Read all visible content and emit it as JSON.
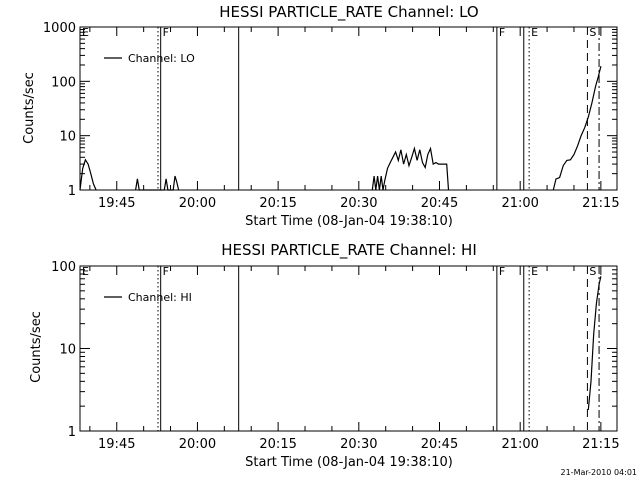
{
  "footer_timestamp": "21-Mar-2010 04:01",
  "chart_data": [
    {
      "type": "line",
      "title": "HESSI PARTICLE_RATE Channel: LO",
      "xlabel": "Start Time (08-Jan-04 19:38:10)",
      "ylabel": "Counts/sec",
      "yscale": "log",
      "ylim": [
        1,
        1000
      ],
      "xlim": [
        "19:38:10",
        "21:18:00"
      ],
      "xticks": [
        "19:45",
        "20:00",
        "20:15",
        "20:30",
        "20:45",
        "21:00",
        "21:15"
      ],
      "yticks": [
        "1",
        "10",
        "100",
        "1000"
      ],
      "legend": "Channel: LO",
      "legend_position": "top-left",
      "series": [
        {
          "name": "Channel: LO",
          "points": [
            [
              "19:38:10",
              1.0
            ],
            [
              "19:38:40",
              2.5
            ],
            [
              "19:39:10",
              3.6
            ],
            [
              "19:39:40",
              3.0
            ],
            [
              "19:40:10",
              2.0
            ],
            [
              "19:40:40",
              1.3
            ],
            [
              "19:41:10",
              1.0
            ],
            [
              "19:48:30",
              1.0
            ],
            [
              "19:48:50",
              1.6
            ],
            [
              "19:49:10",
              1.0
            ],
            [
              "19:53:50",
              1.0
            ],
            [
              "19:54:10",
              1.6
            ],
            [
              "19:54:30",
              1.0
            ],
            [
              "19:55:30",
              1.0
            ],
            [
              "19:55:50",
              1.8
            ],
            [
              "19:56:10",
              1.4
            ],
            [
              "19:56:30",
              1.0
            ],
            [
              "20:32:30",
              1.0
            ],
            [
              "20:32:50",
              1.8
            ],
            [
              "20:33:10",
              1.0
            ],
            [
              "20:33:30",
              1.8
            ],
            [
              "20:33:50",
              1.0
            ],
            [
              "20:34:10",
              1.8
            ],
            [
              "20:34:30",
              1.0
            ],
            [
              "20:34:50",
              1.5
            ],
            [
              "20:35:20",
              2.5
            ],
            [
              "20:35:50",
              3.2
            ],
            [
              "20:36:20",
              4.0
            ],
            [
              "20:36:50",
              5.0
            ],
            [
              "20:37:20",
              3.5
            ],
            [
              "20:37:50",
              5.5
            ],
            [
              "20:38:20",
              3.0
            ],
            [
              "20:38:50",
              4.5
            ],
            [
              "20:39:20",
              2.8
            ],
            [
              "20:39:50",
              4.0
            ],
            [
              "20:40:20",
              5.8
            ],
            [
              "20:40:50",
              3.5
            ],
            [
              "20:41:20",
              5.5
            ],
            [
              "20:41:50",
              3.2
            ],
            [
              "20:42:20",
              2.6
            ],
            [
              "20:42:50",
              4.5
            ],
            [
              "20:43:20",
              5.8
            ],
            [
              "20:43:50",
              3.0
            ],
            [
              "20:44:20",
              3.2
            ],
            [
              "20:44:50",
              3.0
            ],
            [
              "20:45:20",
              3.0
            ],
            [
              "20:45:50",
              3.0
            ],
            [
              "20:46:20",
              3.0
            ],
            [
              "20:46:40",
              1.0
            ],
            [
              "21:06:10",
              1.0
            ],
            [
              "21:06:40",
              1.6
            ],
            [
              "21:07:20",
              1.7
            ],
            [
              "21:08:00",
              2.8
            ],
            [
              "21:08:40",
              3.5
            ],
            [
              "21:09:20",
              3.6
            ],
            [
              "21:10:00",
              4.5
            ],
            [
              "21:10:40",
              6.5
            ],
            [
              "21:11:20",
              10.0
            ],
            [
              "21:12:00",
              14.0
            ],
            [
              "21:12:40",
              22.0
            ],
            [
              "21:13:20",
              40.0
            ],
            [
              "21:14:00",
              80.0
            ],
            [
              "21:14:30",
              120.0
            ],
            [
              "21:15:00",
              190.0
            ]
          ]
        }
      ],
      "markers": [
        {
          "time": "19:38:10",
          "label": "E",
          "style": "solid"
        },
        {
          "time": "19:52:40",
          "label": "",
          "style": "dotted"
        },
        {
          "time": "19:53:10",
          "label": "F",
          "style": "solid"
        },
        {
          "time": "20:07:40",
          "label": "",
          "style": "solid"
        },
        {
          "time": "20:55:40",
          "label": "F",
          "style": "solid"
        },
        {
          "time": "21:00:40",
          "label": "",
          "style": "solid"
        },
        {
          "time": "21:01:40",
          "label": "E",
          "style": "dotted"
        },
        {
          "time": "21:12:30",
          "label": "S",
          "style": "dashed"
        },
        {
          "time": "21:14:40",
          "label": "",
          "style": "dashdot"
        }
      ]
    },
    {
      "type": "line",
      "title": "HESSI PARTICLE_RATE Channel: HI",
      "xlabel": "Start Time (08-Jan-04 19:38:10)",
      "ylabel": "Counts/sec",
      "yscale": "log",
      "ylim": [
        1,
        100
      ],
      "xlim": [
        "19:38:10",
        "21:18:00"
      ],
      "xticks": [
        "19:45",
        "20:00",
        "20:15",
        "20:30",
        "20:45",
        "21:00",
        "21:15"
      ],
      "yticks": [
        "1",
        "10",
        "100"
      ],
      "legend": "Channel: HI",
      "legend_position": "top-left",
      "series": [
        {
          "name": "Channel: HI",
          "points": [
            [
              "21:12:40",
              1.8
            ],
            [
              "21:13:10",
              4.0
            ],
            [
              "21:13:40",
              15.0
            ],
            [
              "21:14:10",
              35.0
            ],
            [
              "21:14:40",
              60.0
            ],
            [
              "21:15:00",
              75.0
            ]
          ]
        }
      ],
      "markers": [
        {
          "time": "19:38:10",
          "label": "E",
          "style": "solid"
        },
        {
          "time": "19:52:40",
          "label": "",
          "style": "dotted"
        },
        {
          "time": "19:53:10",
          "label": "F",
          "style": "solid"
        },
        {
          "time": "20:07:40",
          "label": "",
          "style": "solid"
        },
        {
          "time": "20:55:40",
          "label": "F",
          "style": "solid"
        },
        {
          "time": "21:00:40",
          "label": "",
          "style": "solid"
        },
        {
          "time": "21:01:40",
          "label": "E",
          "style": "dotted"
        },
        {
          "time": "21:12:30",
          "label": "S",
          "style": "dashed"
        },
        {
          "time": "21:14:40",
          "label": "",
          "style": "dashdot"
        }
      ]
    }
  ]
}
